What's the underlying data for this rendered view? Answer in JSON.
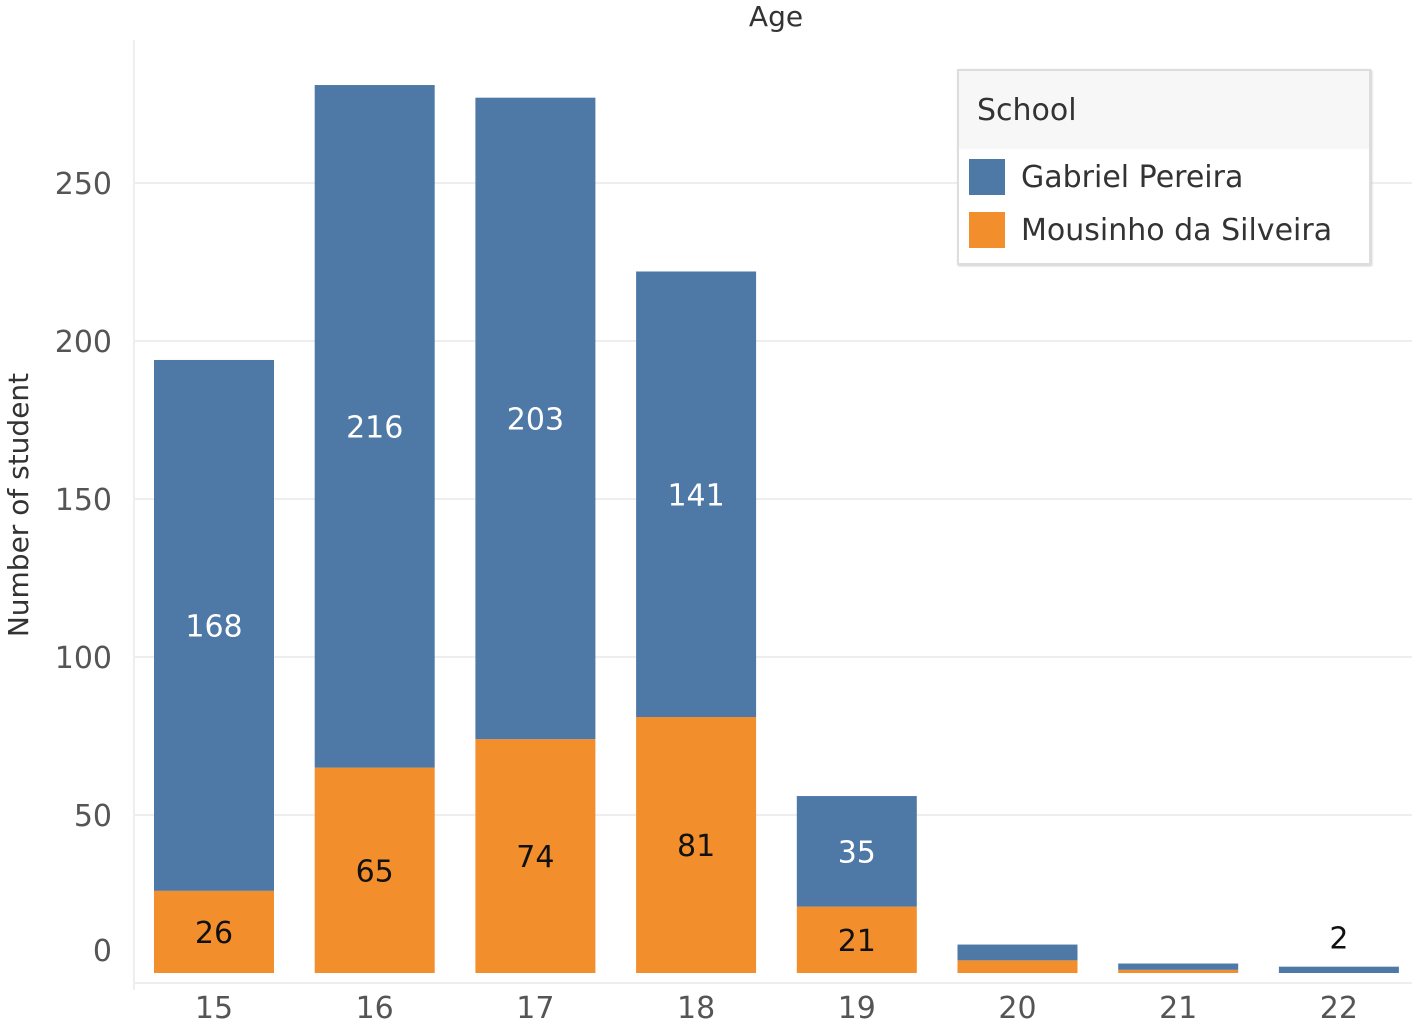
{
  "chart_data": {
    "type": "bar",
    "stacked": true,
    "title": "Age",
    "xlabel": "",
    "ylabel": "Number of student",
    "categories": [
      "15",
      "16",
      "17",
      "18",
      "19",
      "20",
      "21",
      "22"
    ],
    "series": [
      {
        "name": "Mousinho da Silveira",
        "color": "#f28e2b",
        "values": [
          26,
          65,
          74,
          81,
          21,
          4,
          1,
          0
        ]
      },
      {
        "name": "Gabriel Pereira",
        "color": "#4e79a7",
        "values": [
          168,
          216,
          203,
          141,
          35,
          5,
          2,
          2
        ]
      }
    ],
    "data_labels": {
      "Mousinho da Silveira": [
        "26",
        "65",
        "74",
        "81",
        "21",
        "",
        "",
        ""
      ],
      "Gabriel Pereira": [
        "168",
        "216",
        "203",
        "141",
        "35",
        "",
        "",
        "2"
      ]
    },
    "yticks": [
      0,
      50,
      100,
      150,
      200,
      250
    ],
    "ylim": [
      0,
      295
    ],
    "grid": true,
    "legend": {
      "title": "School",
      "position": "top-right",
      "entries": [
        "Gabriel Pereira",
        "Mousinho da Silveira"
      ]
    }
  }
}
